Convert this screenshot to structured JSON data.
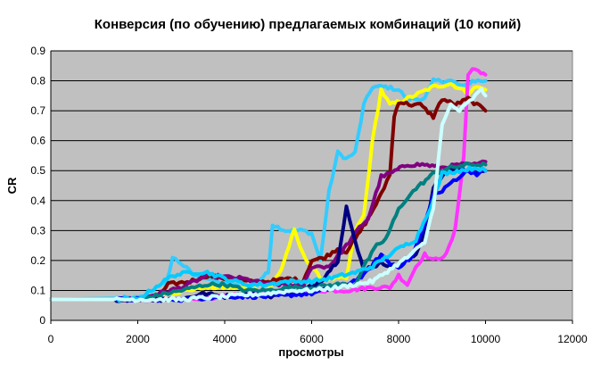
{
  "chart_data": {
    "type": "line",
    "title": "Конверсия (по обучению) предлагаемых комбинаций (10 копий)",
    "xlabel": "просмотры",
    "ylabel": "CR",
    "xlim": [
      0,
      12000
    ],
    "ylim": [
      0,
      0.9
    ],
    "xticks": [
      "0",
      "2000",
      "4000",
      "6000",
      "8000",
      "10000",
      "12000"
    ],
    "yticks": [
      "0",
      "0.1",
      "0.2",
      "0.3",
      "0.4",
      "0.5",
      "0.6",
      "0.7",
      "0.8",
      "0.9"
    ],
    "grid": "horizontal",
    "plot_background": "#c0c0c0",
    "series": [
      {
        "color": "#33ccff",
        "points": [
          [
            0,
            0.07
          ],
          [
            2000,
            0.075
          ],
          [
            2600,
            0.09
          ],
          [
            2800,
            0.21
          ],
          [
            3000,
            0.19
          ],
          [
            3300,
            0.15
          ],
          [
            3600,
            0.14
          ],
          [
            4000,
            0.12
          ],
          [
            4600,
            0.11
          ],
          [
            5000,
            0.16
          ],
          [
            5100,
            0.32
          ],
          [
            5400,
            0.3
          ],
          [
            5800,
            0.3
          ],
          [
            6000,
            0.29
          ],
          [
            6200,
            0.2
          ],
          [
            6400,
            0.43
          ],
          [
            6600,
            0.56
          ],
          [
            6800,
            0.54
          ],
          [
            7000,
            0.56
          ],
          [
            7200,
            0.72
          ],
          [
            7400,
            0.78
          ],
          [
            7700,
            0.78
          ],
          [
            8000,
            0.77
          ],
          [
            8200,
            0.74
          ],
          [
            8600,
            0.74
          ],
          [
            8800,
            0.8
          ],
          [
            9200,
            0.8
          ],
          [
            9500,
            0.78
          ],
          [
            9700,
            0.8
          ],
          [
            10000,
            0.8
          ]
        ]
      },
      {
        "color": "#ffff00",
        "points": [
          [
            0,
            0.07
          ],
          [
            2000,
            0.07
          ],
          [
            3500,
            0.11
          ],
          [
            4200,
            0.11
          ],
          [
            5000,
            0.1
          ],
          [
            5300,
            0.17
          ],
          [
            5600,
            0.3
          ],
          [
            5800,
            0.22
          ],
          [
            6200,
            0.14
          ],
          [
            6800,
            0.14
          ],
          [
            7000,
            0.3
          ],
          [
            7200,
            0.35
          ],
          [
            7400,
            0.6
          ],
          [
            7600,
            0.77
          ],
          [
            7800,
            0.72
          ],
          [
            8200,
            0.74
          ],
          [
            8500,
            0.76
          ],
          [
            8800,
            0.78
          ],
          [
            9200,
            0.79
          ],
          [
            9600,
            0.76
          ],
          [
            9800,
            0.78
          ],
          [
            10000,
            0.77
          ]
        ]
      },
      {
        "color": "#ff33ff",
        "points": [
          [
            0,
            0.07
          ],
          [
            3000,
            0.07
          ],
          [
            4000,
            0.08
          ],
          [
            5000,
            0.09
          ],
          [
            6000,
            0.1
          ],
          [
            6800,
            0.1
          ],
          [
            7400,
            0.11
          ],
          [
            7800,
            0.11
          ],
          [
            8000,
            0.15
          ],
          [
            8200,
            0.12
          ],
          [
            8400,
            0.18
          ],
          [
            8600,
            0.22
          ],
          [
            8800,
            0.2
          ],
          [
            9100,
            0.22
          ],
          [
            9300,
            0.3
          ],
          [
            9500,
            0.55
          ],
          [
            9600,
            0.82
          ],
          [
            9700,
            0.84
          ],
          [
            9900,
            0.83
          ],
          [
            10000,
            0.82
          ]
        ]
      },
      {
        "color": "#800000",
        "points": [
          [
            0,
            0.07
          ],
          [
            2000,
            0.07
          ],
          [
            2500,
            0.08
          ],
          [
            2700,
            0.12
          ],
          [
            3200,
            0.13
          ],
          [
            3600,
            0.15
          ],
          [
            4000,
            0.14
          ],
          [
            4500,
            0.13
          ],
          [
            5000,
            0.13
          ],
          [
            5500,
            0.14
          ],
          [
            5800,
            0.13
          ],
          [
            6000,
            0.2
          ],
          [
            6300,
            0.21
          ],
          [
            6600,
            0.24
          ],
          [
            6800,
            0.23
          ],
          [
            7000,
            0.27
          ],
          [
            7300,
            0.34
          ],
          [
            7600,
            0.42
          ],
          [
            7800,
            0.49
          ],
          [
            7900,
            0.68
          ],
          [
            8000,
            0.73
          ],
          [
            8300,
            0.72
          ],
          [
            8500,
            0.72
          ],
          [
            8800,
            0.68
          ],
          [
            9000,
            0.74
          ],
          [
            9300,
            0.72
          ],
          [
            9600,
            0.74
          ],
          [
            9800,
            0.72
          ],
          [
            10000,
            0.7
          ]
        ]
      },
      {
        "color": "#800080",
        "points": [
          [
            0,
            0.07
          ],
          [
            2000,
            0.07
          ],
          [
            3000,
            0.11
          ],
          [
            3600,
            0.15
          ],
          [
            4400,
            0.14
          ],
          [
            5000,
            0.12
          ],
          [
            5500,
            0.12
          ],
          [
            5800,
            0.11
          ],
          [
            6000,
            0.18
          ],
          [
            6400,
            0.18
          ],
          [
            6800,
            0.25
          ],
          [
            7100,
            0.31
          ],
          [
            7300,
            0.34
          ],
          [
            7600,
            0.48
          ],
          [
            7800,
            0.49
          ],
          [
            8200,
            0.52
          ],
          [
            8600,
            0.52
          ],
          [
            9000,
            0.51
          ],
          [
            9400,
            0.52
          ],
          [
            9800,
            0.52
          ],
          [
            10000,
            0.53
          ]
        ]
      },
      {
        "color": "#000080",
        "points": [
          [
            0,
            0.07
          ],
          [
            2000,
            0.07
          ],
          [
            3000,
            0.07
          ],
          [
            3500,
            0.09
          ],
          [
            4000,
            0.08
          ],
          [
            4600,
            0.09
          ],
          [
            5000,
            0.08
          ],
          [
            5800,
            0.1
          ],
          [
            6200,
            0.13
          ],
          [
            6600,
            0.2
          ],
          [
            6800,
            0.38
          ],
          [
            7000,
            0.26
          ],
          [
            7200,
            0.17
          ],
          [
            7600,
            0.19
          ],
          [
            8000,
            0.18
          ],
          [
            8400,
            0.22
          ],
          [
            8600,
            0.3
          ],
          [
            8800,
            0.44
          ],
          [
            9000,
            0.48
          ],
          [
            9300,
            0.51
          ],
          [
            9600,
            0.5
          ],
          [
            10000,
            0.5
          ]
        ]
      },
      {
        "color": "#0000ff",
        "points": [
          [
            0,
            0.07
          ],
          [
            3000,
            0.07
          ],
          [
            4000,
            0.08
          ],
          [
            5000,
            0.08
          ],
          [
            6000,
            0.09
          ],
          [
            6800,
            0.12
          ],
          [
            7200,
            0.15
          ],
          [
            7600,
            0.22
          ],
          [
            7800,
            0.19
          ],
          [
            8000,
            0.18
          ],
          [
            8300,
            0.21
          ],
          [
            8600,
            0.32
          ],
          [
            8800,
            0.42
          ],
          [
            9000,
            0.43
          ],
          [
            9200,
            0.46
          ],
          [
            9400,
            0.48
          ],
          [
            9600,
            0.5
          ],
          [
            9800,
            0.49
          ],
          [
            10000,
            0.5
          ]
        ]
      },
      {
        "color": "#008080",
        "points": [
          [
            0,
            0.07
          ],
          [
            2000,
            0.07
          ],
          [
            3000,
            0.1
          ],
          [
            3600,
            0.12
          ],
          [
            4000,
            0.12
          ],
          [
            4500,
            0.1
          ],
          [
            5000,
            0.1
          ],
          [
            5500,
            0.11
          ],
          [
            6000,
            0.11
          ],
          [
            6600,
            0.12
          ],
          [
            7000,
            0.12
          ],
          [
            7200,
            0.18
          ],
          [
            7500,
            0.25
          ],
          [
            7700,
            0.27
          ],
          [
            8000,
            0.37
          ],
          [
            8200,
            0.41
          ],
          [
            8400,
            0.44
          ],
          [
            8800,
            0.49
          ],
          [
            9200,
            0.51
          ],
          [
            9600,
            0.52
          ],
          [
            10000,
            0.52
          ]
        ]
      },
      {
        "color": "#00ccff",
        "points": [
          [
            0,
            0.07
          ],
          [
            2000,
            0.07
          ],
          [
            2800,
            0.15
          ],
          [
            3200,
            0.16
          ],
          [
            3600,
            0.16
          ],
          [
            4000,
            0.14
          ],
          [
            4500,
            0.12
          ],
          [
            5000,
            0.12
          ],
          [
            5400,
            0.13
          ],
          [
            6000,
            0.13
          ],
          [
            6400,
            0.14
          ],
          [
            7000,
            0.16
          ],
          [
            7400,
            0.18
          ],
          [
            7800,
            0.22
          ],
          [
            8000,
            0.24
          ],
          [
            8400,
            0.27
          ],
          [
            8800,
            0.4
          ],
          [
            9000,
            0.49
          ],
          [
            9400,
            0.5
          ],
          [
            9800,
            0.51
          ],
          [
            10000,
            0.5
          ]
        ]
      },
      {
        "color": "#ccffff",
        "points": [
          [
            0,
            0.07
          ],
          [
            2000,
            0.07
          ],
          [
            3000,
            0.07
          ],
          [
            4000,
            0.08
          ],
          [
            5000,
            0.09
          ],
          [
            5600,
            0.1
          ],
          [
            6000,
            0.1
          ],
          [
            6600,
            0.11
          ],
          [
            7000,
            0.12
          ],
          [
            7400,
            0.13
          ],
          [
            7800,
            0.17
          ],
          [
            8200,
            0.21
          ],
          [
            8600,
            0.26
          ],
          [
            8800,
            0.38
          ],
          [
            9000,
            0.65
          ],
          [
            9200,
            0.72
          ],
          [
            9400,
            0.7
          ],
          [
            9700,
            0.74
          ],
          [
            9900,
            0.77
          ],
          [
            10000,
            0.75
          ]
        ]
      }
    ]
  }
}
